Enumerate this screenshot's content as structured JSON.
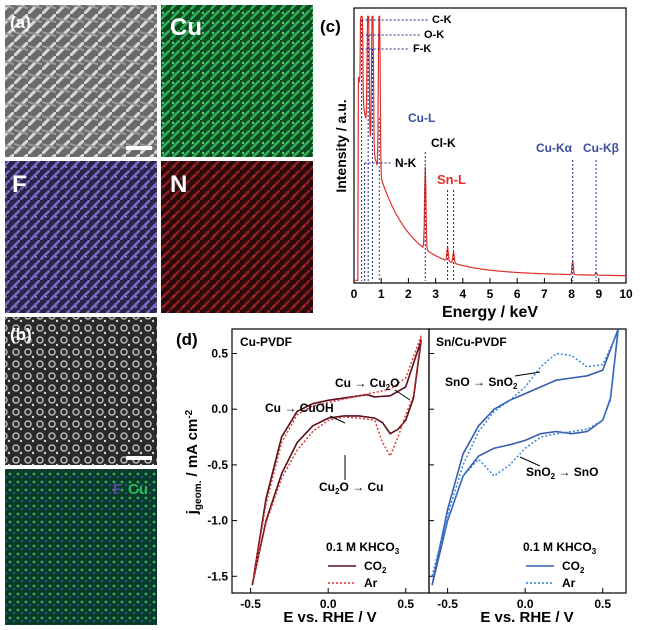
{
  "panels": {
    "a": "(a)",
    "b": "(b)",
    "c": "(c)",
    "d": "(d)"
  },
  "edx_maps": {
    "cu": "Cu",
    "f": "F",
    "n": "N",
    "b_overlay_f": "F",
    "b_overlay_cu": "Cu"
  },
  "colors": {
    "spectrum": "#e0312b",
    "blue_label": "#3a4fa0",
    "cu_map": "#1f8a3a",
    "f_map": "#5a4aa0",
    "n_map": "#8a1a1a",
    "cu_cv": "#5a0f1a",
    "cu_ar": "#e0312b",
    "sn_cv": "#3a5cb0",
    "sn_ar": "#2e7fd8"
  },
  "spectrum": {
    "xlabel": "Energy / keV",
    "ylabel": "Intensity / a.u.",
    "peaks": {
      "c_k": "C-K",
      "o_k": "O-K",
      "f_k": "F-K",
      "cu_l": "Cu-L",
      "cl_k": "Cl-K",
      "n_k": "N-K",
      "sn_l": "Sn-L",
      "cu_ka": "Cu-Kα",
      "cu_kb": "Cu-Kβ"
    }
  },
  "cv": {
    "ylabel": "j",
    "ylabel_sub": "geom.",
    "ylabel_unit": " / mA cm",
    "ylabel_sup": "-2",
    "xlabel_left": "E vs. RHE / V",
    "xlabel_right": "E vs. RHE / V",
    "left_title": "Cu-PVDF",
    "right_title": "Sn/Cu-PVDF",
    "electrolyte_left": "0.1 M KHCO",
    "electrolyte_right": "0.1 M KHCO",
    "sub3": "3",
    "legend_co2": "CO",
    "legend_co2_sub": "2",
    "legend_ar": "Ar",
    "ann_cu_cu2o_a": "Cu → Cu",
    "ann_cu_cu2o_sub": "2",
    "ann_cu_cu2o_b": "O",
    "ann_cu_cuoh": "Cu → CuOH",
    "ann_cu2o_cu_a": "Cu",
    "ann_cu2o_cu_sub": "2",
    "ann_cu2o_cu_b": "O → Cu",
    "ann_sno_sno2_a": "SnO → SnO",
    "ann_sno_sno2_sub": "2",
    "ann_sno2_sno_a": "SnO",
    "ann_sno2_sno_sub": "2",
    "ann_sno2_sno_b": " → SnO"
  },
  "chart_data": [
    {
      "type": "line",
      "name": "EDX spectrum",
      "xlabel": "Energy / keV",
      "ylabel": "Intensity / a.u.",
      "xlim": [
        0,
        10
      ],
      "x_ticks": [
        "0",
        "1",
        "2",
        "3",
        "4",
        "5",
        "6",
        "7",
        "8",
        "9",
        "10"
      ],
      "peak_positions_keV": {
        "C-K": 0.28,
        "O-K": 0.52,
        "F-K": 0.68,
        "Cu-L": 0.93,
        "N-K": 0.39,
        "Cl-K": 2.62,
        "Sn-L": 3.44,
        "Cu-Kα": 8.04,
        "Cu-Kβ": 8.9
      }
    },
    {
      "type": "line",
      "title": "Cu-PVDF",
      "xlabel": "E vs. RHE / V",
      "ylabel": "jgeom. / mA cm-2",
      "xlim": [
        -0.62,
        0.65
      ],
      "ylim": [
        -1.65,
        0.72
      ],
      "x_ticks": [
        "-0.5",
        "0.0",
        "0.5"
      ],
      "y_ticks": [
        "0.5",
        "0.0",
        "-0.5",
        "-1.0",
        "-1.5"
      ],
      "series": [
        {
          "name": "CO2",
          "anodic": [
            [
              -0.48,
              -1.5
            ],
            [
              -0.4,
              -0.8
            ],
            [
              -0.3,
              -0.25
            ],
            [
              -0.2,
              -0.02
            ],
            [
              -0.1,
              0.05
            ],
            [
              0.0,
              0.08
            ],
            [
              0.1,
              0.1
            ],
            [
              0.2,
              0.12
            ],
            [
              0.25,
              0.13
            ],
            [
              0.3,
              0.11
            ],
            [
              0.4,
              0.12
            ],
            [
              0.5,
              0.2
            ],
            [
              0.6,
              0.62
            ]
          ],
          "cathodic": [
            [
              0.6,
              0.62
            ],
            [
              0.55,
              0.1
            ],
            [
              0.5,
              -0.1
            ],
            [
              0.45,
              -0.18
            ],
            [
              0.4,
              -0.22
            ],
            [
              0.35,
              -0.12
            ],
            [
              0.3,
              -0.08
            ],
            [
              0.2,
              -0.06
            ],
            [
              0.1,
              -0.06
            ],
            [
              0.0,
              -0.08
            ],
            [
              -0.1,
              -0.15
            ],
            [
              -0.2,
              -0.3
            ],
            [
              -0.3,
              -0.58
            ],
            [
              -0.4,
              -1.0
            ],
            [
              -0.49,
              -1.58
            ]
          ]
        },
        {
          "name": "Ar",
          "anodic": [
            [
              -0.48,
              -1.5
            ],
            [
              -0.4,
              -0.85
            ],
            [
              -0.3,
              -0.3
            ],
            [
              -0.2,
              -0.05
            ],
            [
              -0.1,
              0.03
            ],
            [
              0.0,
              0.06
            ],
            [
              0.1,
              0.09
            ],
            [
              0.2,
              0.12
            ],
            [
              0.3,
              0.15
            ],
            [
              0.4,
              0.18
            ],
            [
              0.5,
              0.28
            ],
            [
              0.6,
              0.66
            ]
          ],
          "cathodic": [
            [
              0.6,
              0.66
            ],
            [
              0.55,
              0.12
            ],
            [
              0.5,
              -0.05
            ],
            [
              0.45,
              -0.25
            ],
            [
              0.4,
              -0.42
            ],
            [
              0.35,
              -0.3
            ],
            [
              0.3,
              -0.1
            ],
            [
              0.2,
              -0.08
            ],
            [
              0.1,
              -0.07
            ],
            [
              0.0,
              -0.1
            ],
            [
              -0.1,
              -0.2
            ],
            [
              -0.2,
              -0.37
            ],
            [
              -0.3,
              -0.62
            ],
            [
              -0.4,
              -1.02
            ],
            [
              -0.49,
              -1.56
            ]
          ]
        }
      ]
    },
    {
      "type": "line",
      "title": "Sn/Cu-PVDF",
      "xlabel": "E vs. RHE / V",
      "xlim": [
        -0.62,
        0.65
      ],
      "ylim": [
        -1.65,
        0.72
      ],
      "x_ticks": [
        "-0.5",
        "0.0",
        "0.5"
      ],
      "series": [
        {
          "name": "CO2",
          "anodic": [
            [
              -0.6,
              -1.58
            ],
            [
              -0.5,
              -0.9
            ],
            [
              -0.4,
              -0.4
            ],
            [
              -0.3,
              -0.15
            ],
            [
              -0.2,
              0.0
            ],
            [
              -0.1,
              0.08
            ],
            [
              0.0,
              0.14
            ],
            [
              0.1,
              0.2
            ],
            [
              0.2,
              0.26
            ],
            [
              0.3,
              0.28
            ],
            [
              0.4,
              0.3
            ],
            [
              0.5,
              0.35
            ],
            [
              0.6,
              0.72
            ]
          ],
          "cathodic": [
            [
              0.6,
              0.72
            ],
            [
              0.55,
              0.1
            ],
            [
              0.5,
              -0.1
            ],
            [
              0.4,
              -0.2
            ],
            [
              0.3,
              -0.22
            ],
            [
              0.2,
              -0.2
            ],
            [
              0.1,
              -0.22
            ],
            [
              0.0,
              -0.28
            ],
            [
              -0.1,
              -0.32
            ],
            [
              -0.2,
              -0.35
            ],
            [
              -0.3,
              -0.42
            ],
            [
              -0.4,
              -0.6
            ],
            [
              -0.5,
              -1.0
            ],
            [
              -0.6,
              -1.58
            ]
          ]
        },
        {
          "name": "Ar",
          "anodic": [
            [
              -0.6,
              -1.5
            ],
            [
              -0.5,
              -0.95
            ],
            [
              -0.4,
              -0.5
            ],
            [
              -0.3,
              -0.2
            ],
            [
              -0.2,
              -0.02
            ],
            [
              -0.1,
              0.08
            ],
            [
              0.0,
              0.2
            ],
            [
              0.1,
              0.38
            ],
            [
              0.2,
              0.5
            ],
            [
              0.3,
              0.48
            ],
            [
              0.4,
              0.38
            ],
            [
              0.5,
              0.4
            ],
            [
              0.6,
              0.7
            ]
          ],
          "cathodic": [
            [
              0.6,
              0.7
            ],
            [
              0.55,
              0.08
            ],
            [
              0.5,
              -0.1
            ],
            [
              0.4,
              -0.18
            ],
            [
              0.3,
              -0.2
            ],
            [
              0.2,
              -0.22
            ],
            [
              0.1,
              -0.25
            ],
            [
              0.0,
              -0.35
            ],
            [
              -0.1,
              -0.5
            ],
            [
              -0.2,
              -0.6
            ],
            [
              -0.3,
              -0.45
            ],
            [
              -0.4,
              -0.6
            ],
            [
              -0.5,
              -1.0
            ],
            [
              -0.6,
              -1.5
            ]
          ]
        }
      ]
    }
  ]
}
